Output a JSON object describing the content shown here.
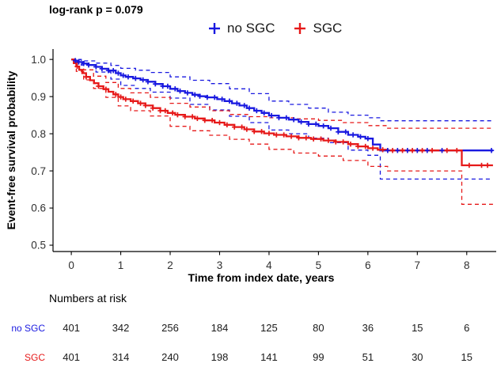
{
  "p_value_label": "log-rank p = 0.079",
  "legend": {
    "items": [
      {
        "label": "no SGC",
        "color": "#1919e0"
      },
      {
        "label": "SGC",
        "color": "#e61919"
      }
    ]
  },
  "chart_data": {
    "type": "line",
    "subtype": "kaplan-meier-step",
    "title": "",
    "xlabel": "Time from index date, years",
    "ylabel": "Event-free survival probability",
    "xlim": [
      -0.37,
      8.58
    ],
    "ylim": [
      0.483,
      1.028
    ],
    "grid": false,
    "legend_position": "top",
    "xticks": [
      {
        "v": 0,
        "label": "0"
      },
      {
        "v": 1,
        "label": "1"
      },
      {
        "v": 2,
        "label": "2"
      },
      {
        "v": 3,
        "label": "3"
      },
      {
        "v": 4,
        "label": "4"
      },
      {
        "v": 5,
        "label": "5"
      },
      {
        "v": 6,
        "label": "6"
      },
      {
        "v": 7,
        "label": "7"
      },
      {
        "v": 8,
        "label": "8"
      }
    ],
    "yticks": [
      {
        "v": 1.0,
        "label": "1.0"
      },
      {
        "v": 0.9,
        "label": "0.9"
      },
      {
        "v": 0.8,
        "label": "0.8"
      },
      {
        "v": 0.7,
        "label": "0.7"
      },
      {
        "v": 0.6,
        "label": "0.6"
      },
      {
        "v": 0.5,
        "label": "0.5"
      }
    ],
    "series": [
      {
        "name": "no SGC upper 95% CI",
        "color": "#1919e0",
        "style": "dashed",
        "steps": [
          [
            0,
            1.0
          ],
          [
            0.2,
            0.996
          ],
          [
            0.5,
            0.99
          ],
          [
            0.8,
            0.984
          ],
          [
            1.0,
            0.976
          ],
          [
            1.3,
            0.971
          ],
          [
            1.6,
            0.965
          ],
          [
            2.0,
            0.953
          ],
          [
            2.4,
            0.944
          ],
          [
            2.8,
            0.935
          ],
          [
            3.2,
            0.921
          ],
          [
            3.6,
            0.908
          ],
          [
            4.0,
            0.888
          ],
          [
            4.4,
            0.879
          ],
          [
            4.8,
            0.869
          ],
          [
            5.2,
            0.858
          ],
          [
            5.6,
            0.85
          ],
          [
            6.0,
            0.843
          ],
          [
            6.25,
            0.835
          ],
          [
            8.53,
            0.835
          ]
        ]
      },
      {
        "name": "no SGC lower 95% CI",
        "color": "#1919e0",
        "style": "dashed",
        "steps": [
          [
            0,
            1.0
          ],
          [
            0.2,
            0.985
          ],
          [
            0.5,
            0.966
          ],
          [
            0.8,
            0.947
          ],
          [
            1.0,
            0.93
          ],
          [
            1.3,
            0.922
          ],
          [
            1.6,
            0.912
          ],
          [
            2.0,
            0.896
          ],
          [
            2.4,
            0.879
          ],
          [
            2.8,
            0.864
          ],
          [
            3.2,
            0.847
          ],
          [
            3.6,
            0.83
          ],
          [
            4.0,
            0.81
          ],
          [
            4.4,
            0.8
          ],
          [
            4.8,
            0.788
          ],
          [
            5.2,
            0.776
          ],
          [
            5.6,
            0.756
          ],
          [
            6.0,
            0.742
          ],
          [
            6.25,
            0.678
          ],
          [
            8.53,
            0.678
          ]
        ]
      },
      {
        "name": "SGC upper 95% CI",
        "color": "#e61919",
        "style": "dashed",
        "steps": [
          [
            0,
            1.0
          ],
          [
            0.1,
            0.99
          ],
          [
            0.25,
            0.972
          ],
          [
            0.45,
            0.955
          ],
          [
            0.7,
            0.938
          ],
          [
            0.95,
            0.922
          ],
          [
            1.2,
            0.91
          ],
          [
            1.6,
            0.898
          ],
          [
            2.0,
            0.882
          ],
          [
            2.4,
            0.872
          ],
          [
            2.8,
            0.862
          ],
          [
            3.2,
            0.852
          ],
          [
            3.6,
            0.846
          ],
          [
            4.0,
            0.843
          ],
          [
            4.5,
            0.84
          ],
          [
            5.0,
            0.836
          ],
          [
            5.5,
            0.83
          ],
          [
            6.0,
            0.822
          ],
          [
            6.4,
            0.815
          ],
          [
            8.53,
            0.815
          ]
        ]
      },
      {
        "name": "SGC lower 95% CI",
        "color": "#e61919",
        "style": "dashed",
        "steps": [
          [
            0,
            1.0
          ],
          [
            0.1,
            0.968
          ],
          [
            0.25,
            0.945
          ],
          [
            0.45,
            0.922
          ],
          [
            0.7,
            0.898
          ],
          [
            0.95,
            0.875
          ],
          [
            1.2,
            0.862
          ],
          [
            1.6,
            0.848
          ],
          [
            2.0,
            0.82
          ],
          [
            2.4,
            0.808
          ],
          [
            2.8,
            0.796
          ],
          [
            3.2,
            0.785
          ],
          [
            3.6,
            0.772
          ],
          [
            4.0,
            0.758
          ],
          [
            4.5,
            0.748
          ],
          [
            5.0,
            0.74
          ],
          [
            5.5,
            0.728
          ],
          [
            6.0,
            0.712
          ],
          [
            6.4,
            0.7
          ],
          [
            7.9,
            0.61
          ],
          [
            8.53,
            0.61
          ]
        ]
      },
      {
        "name": "no SGC",
        "color": "#1919e0",
        "style": "solid",
        "steps": [
          [
            0,
            1.0
          ],
          [
            0.08,
            0.997
          ],
          [
            0.15,
            0.993
          ],
          [
            0.25,
            0.989
          ],
          [
            0.35,
            0.985
          ],
          [
            0.5,
            0.98
          ],
          [
            0.62,
            0.975
          ],
          [
            0.75,
            0.97
          ],
          [
            0.9,
            0.963
          ],
          [
            1.0,
            0.957
          ],
          [
            1.1,
            0.953
          ],
          [
            1.25,
            0.949
          ],
          [
            1.4,
            0.945
          ],
          [
            1.55,
            0.94
          ],
          [
            1.7,
            0.934
          ],
          [
            1.85,
            0.928
          ],
          [
            2.0,
            0.921
          ],
          [
            2.15,
            0.915
          ],
          [
            2.3,
            0.91
          ],
          [
            2.45,
            0.905
          ],
          [
            2.6,
            0.901
          ],
          [
            2.75,
            0.898
          ],
          [
            2.95,
            0.893
          ],
          [
            3.1,
            0.888
          ],
          [
            3.25,
            0.882
          ],
          [
            3.4,
            0.876
          ],
          [
            3.55,
            0.869
          ],
          [
            3.7,
            0.862
          ],
          [
            3.85,
            0.856
          ],
          [
            4.0,
            0.849
          ],
          [
            4.2,
            0.843
          ],
          [
            4.4,
            0.838
          ],
          [
            4.6,
            0.832
          ],
          [
            4.8,
            0.826
          ],
          [
            5.0,
            0.821
          ],
          [
            5.2,
            0.815
          ],
          [
            5.4,
            0.805
          ],
          [
            5.6,
            0.797
          ],
          [
            5.8,
            0.792
          ],
          [
            5.95,
            0.787
          ],
          [
            6.1,
            0.771
          ],
          [
            6.25,
            0.755
          ],
          [
            8.53,
            0.755
          ]
        ],
        "censor_times": [
          0.08,
          0.15,
          0.25,
          0.35,
          0.5,
          0.62,
          0.75,
          0.85,
          0.95,
          1.05,
          1.15,
          1.3,
          1.45,
          1.55,
          1.7,
          1.85,
          1.95,
          2.1,
          2.2,
          2.35,
          2.5,
          2.6,
          2.75,
          2.9,
          3.05,
          3.2,
          3.35,
          3.5,
          3.6,
          3.75,
          3.9,
          4.05,
          4.2,
          4.35,
          4.5,
          4.65,
          4.8,
          4.95,
          5.1,
          5.25,
          5.4,
          5.55,
          5.7,
          5.85,
          6.0,
          6.4,
          6.6,
          6.8,
          7.0,
          7.2,
          7.5,
          8.5
        ]
      },
      {
        "name": "SGC",
        "color": "#e61919",
        "style": "solid",
        "steps": [
          [
            0,
            1.0
          ],
          [
            0.05,
            0.99
          ],
          [
            0.1,
            0.981
          ],
          [
            0.16,
            0.972
          ],
          [
            0.22,
            0.963
          ],
          [
            0.3,
            0.953
          ],
          [
            0.38,
            0.944
          ],
          [
            0.46,
            0.936
          ],
          [
            0.55,
            0.928
          ],
          [
            0.65,
            0.92
          ],
          [
            0.75,
            0.913
          ],
          [
            0.85,
            0.906
          ],
          [
            0.95,
            0.899
          ],
          [
            1.05,
            0.893
          ],
          [
            1.2,
            0.888
          ],
          [
            1.35,
            0.882
          ],
          [
            1.5,
            0.876
          ],
          [
            1.65,
            0.869
          ],
          [
            1.8,
            0.862
          ],
          [
            1.95,
            0.856
          ],
          [
            2.1,
            0.851
          ],
          [
            2.3,
            0.846
          ],
          [
            2.5,
            0.841
          ],
          [
            2.7,
            0.836
          ],
          [
            2.9,
            0.83
          ],
          [
            3.1,
            0.824
          ],
          [
            3.3,
            0.818
          ],
          [
            3.5,
            0.812
          ],
          [
            3.7,
            0.806
          ],
          [
            3.9,
            0.801
          ],
          [
            4.1,
            0.797
          ],
          [
            4.35,
            0.793
          ],
          [
            4.6,
            0.789
          ],
          [
            4.85,
            0.786
          ],
          [
            5.1,
            0.782
          ],
          [
            5.35,
            0.778
          ],
          [
            5.6,
            0.772
          ],
          [
            5.8,
            0.766
          ],
          [
            6.0,
            0.761
          ],
          [
            6.2,
            0.757
          ],
          [
            6.4,
            0.755
          ],
          [
            7.9,
            0.715
          ],
          [
            8.53,
            0.715
          ]
        ],
        "censor_times": [
          0.12,
          0.3,
          0.55,
          0.7,
          0.9,
          1.0,
          1.1,
          1.25,
          1.4,
          1.5,
          1.65,
          1.8,
          1.9,
          2.05,
          2.15,
          2.3,
          2.45,
          2.55,
          2.7,
          2.85,
          3.0,
          3.15,
          3.3,
          3.45,
          3.55,
          3.7,
          3.85,
          4.0,
          4.15,
          4.3,
          4.45,
          4.6,
          4.75,
          4.9,
          5.05,
          5.2,
          5.35,
          5.5,
          5.65,
          5.8,
          5.95,
          6.1,
          6.3,
          6.5,
          6.7,
          6.9,
          7.1,
          7.3,
          7.6,
          7.8,
          8.05,
          8.3,
          8.42
        ]
      }
    ]
  },
  "risk_table": {
    "title": "Numbers at risk",
    "times": [
      0,
      1,
      2,
      3,
      4,
      5,
      6,
      7,
      8
    ],
    "rows": [
      {
        "label": "no SGC",
        "color": "#1919e0",
        "counts": [
          "401",
          "342",
          "256",
          "184",
          "125",
          "80",
          "36",
          "15",
          "6"
        ]
      },
      {
        "label": "SGC",
        "color": "#e61919",
        "counts": [
          "401",
          "314",
          "240",
          "198",
          "141",
          "99",
          "51",
          "30",
          "15"
        ]
      }
    ]
  },
  "colors": {
    "axis": "#000000",
    "tick_label": "#303030",
    "number_text": "#1a1a1a"
  }
}
